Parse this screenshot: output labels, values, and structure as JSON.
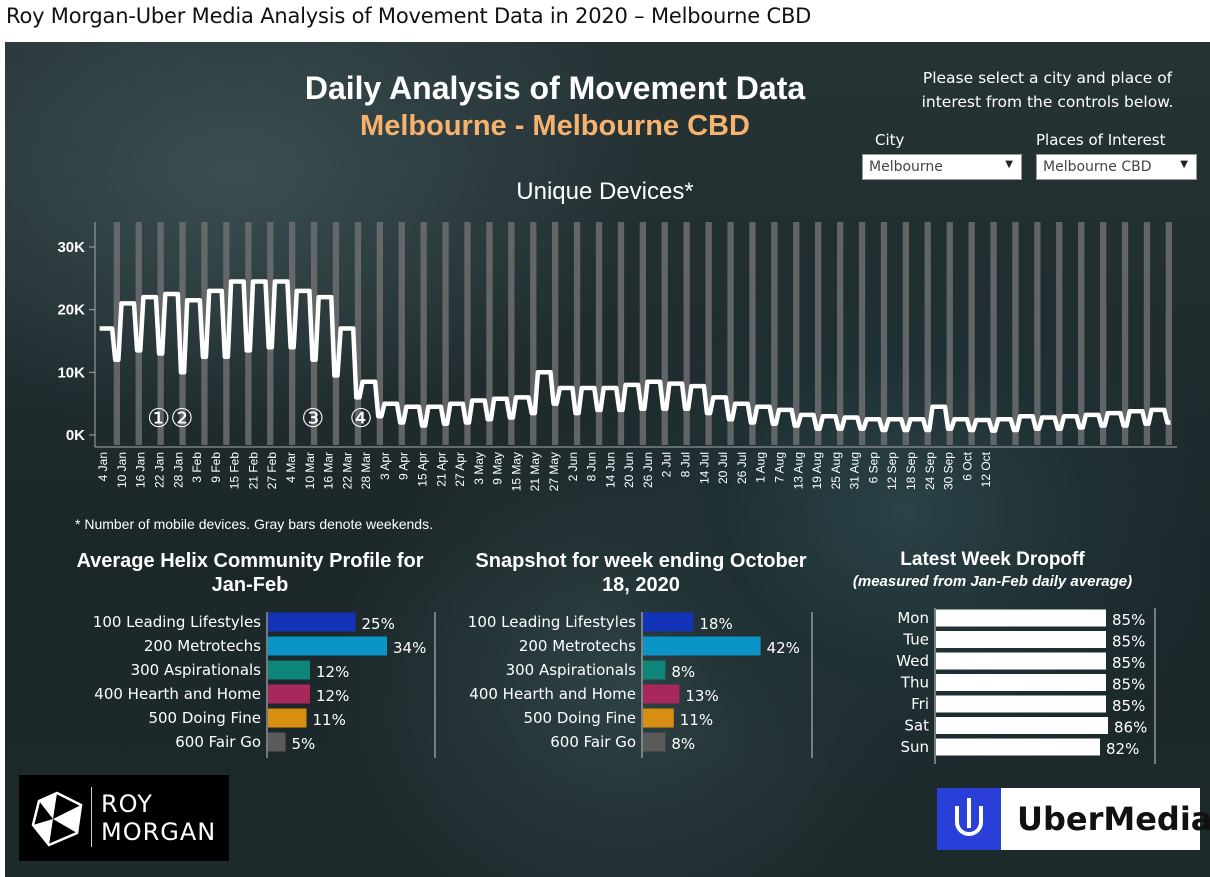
{
  "page_title": "Roy Morgan-Uber Media Analysis of Movement Data in 2020 – Melbourne CBD",
  "header": {
    "title": "Daily Analysis of Movement Data",
    "subtitle": "Melbourne - Melbourne CBD",
    "instructions": "Please select a city and place of interest from the controls below."
  },
  "controls": {
    "city_label": "City",
    "city_value": "Melbourne",
    "poi_label": "Places of Interest",
    "poi_value": "Melbourne CBD"
  },
  "colors": {
    "accent": "#f7b26d",
    "line": "#ffffff",
    "weekend_bar": "#6e6e6e",
    "leading_lifestyles": "#1334b8",
    "metrotechs": "#0b95c6",
    "aspirationals": "#0f857a",
    "hearth_home": "#a8275d",
    "doing_fine": "#d88e10",
    "fair_go": "#5a5a5a"
  },
  "chart_data": [
    {
      "type": "line",
      "title": "Unique Devices*",
      "footnote": "* Number of mobile devices. Gray bars denote weekends.",
      "y_ticks": [
        "30K",
        "20K",
        "10K",
        "0K"
      ],
      "ylim": [
        0,
        33000
      ],
      "x_tick_labels": [
        "4 Jan",
        "10 Jan",
        "16 Jan",
        "22 Jan",
        "28 Jan",
        "3 Feb",
        "9 Feb",
        "15 Feb",
        "21 Feb",
        "27 Feb",
        "4 Mar",
        "10 Mar",
        "16 Mar",
        "22 Mar",
        "28 Mar",
        "3 Apr",
        "9 Apr",
        "15 Apr",
        "21 Apr",
        "27 Apr",
        "3 May",
        "9 May",
        "15 May",
        "21 May",
        "27 May",
        "2 Jun",
        "8 Jun",
        "14 Jun",
        "20 Jun",
        "26 Jun",
        "2 Jul",
        "8 Jul",
        "14 Jul",
        "20 Jul",
        "26 Jul",
        "1 Aug",
        "7 Aug",
        "13 Aug",
        "19 Aug",
        "25 Aug",
        "31 Aug",
        "6 Sep",
        "12 Sep",
        "18 Sep",
        "24 Sep",
        "30 Sep",
        "6 Oct",
        "12 Oct"
      ],
      "annotations": [
        "①②",
        "③",
        "④"
      ],
      "series": [
        {
          "weekly_points_weekday_weekend": [
            [
              17000,
              12000
            ],
            [
              21000,
              13500
            ],
            [
              22000,
              13000
            ],
            [
              22500,
              10000
            ],
            [
              21500,
              12500
            ],
            [
              23000,
              12500
            ],
            [
              24500,
              13500
            ],
            [
              24500,
              14000
            ],
            [
              24500,
              14000
            ],
            [
              23000,
              12000
            ],
            [
              22000,
              9500
            ],
            [
              17000,
              6000
            ],
            [
              8500,
              3000
            ],
            [
              5000,
              2000
            ],
            [
              4500,
              1500
            ],
            [
              4500,
              1800
            ],
            [
              5000,
              2000
            ],
            [
              5500,
              2500
            ],
            [
              5800,
              2800
            ],
            [
              6000,
              3500
            ],
            [
              10000,
              5000
            ],
            [
              7500,
              3500
            ],
            [
              7500,
              4000
            ],
            [
              7500,
              4000
            ],
            [
              8000,
              4200
            ],
            [
              8500,
              4200
            ],
            [
              8200,
              4200
            ],
            [
              7800,
              3500
            ],
            [
              6000,
              2500
            ],
            [
              5000,
              2000
            ],
            [
              4500,
              1800
            ],
            [
              4000,
              1500
            ],
            [
              3200,
              1000
            ],
            [
              3000,
              1000
            ],
            [
              2800,
              1000
            ],
            [
              2500,
              800
            ],
            [
              2500,
              800
            ],
            [
              2500,
              800
            ],
            [
              4500,
              1000
            ],
            [
              2500,
              800
            ],
            [
              2400,
              700
            ],
            [
              2500,
              800
            ],
            [
              3000,
              1000
            ],
            [
              2800,
              1000
            ],
            [
              3000,
              1200
            ],
            [
              3200,
              1500
            ],
            [
              3500,
              1500
            ],
            [
              3800,
              1800
            ],
            [
              4000,
              2000
            ]
          ]
        }
      ]
    },
    {
      "type": "bar",
      "title": "Average Helix Community Profile for Jan-Feb",
      "categories": [
        "100 Leading Lifestyles",
        "200 Metrotechs",
        "300 Aspirationals",
        "400 Hearth and Home",
        "500 Doing Fine",
        "600 Fair Go"
      ],
      "values": [
        25,
        34,
        12,
        12,
        11,
        5
      ],
      "value_labels": [
        "25%",
        "34%",
        "12%",
        "12%",
        "11%",
        "5%"
      ]
    },
    {
      "type": "bar",
      "title": "Snapshot for week ending October 18, 2020",
      "categories": [
        "100 Leading Lifestyles",
        "200 Metrotechs",
        "300 Aspirationals",
        "400 Hearth and Home",
        "500 Doing Fine",
        "600 Fair Go"
      ],
      "values": [
        18,
        42,
        8,
        13,
        11,
        8
      ],
      "value_labels": [
        "18%",
        "42%",
        "8%",
        "13%",
        "11%",
        "8%"
      ]
    },
    {
      "type": "bar",
      "title": "Latest Week Dropoff",
      "subtitle": "(measured from Jan-Feb daily average)",
      "categories": [
        "Mon",
        "Tue",
        "Wed",
        "Thu",
        "Fri",
        "Sat",
        "Sun"
      ],
      "values": [
        85,
        85,
        85,
        85,
        85,
        86,
        82
      ],
      "value_labels": [
        "85%",
        "85%",
        "85%",
        "85%",
        "85%",
        "86%",
        "82%"
      ]
    }
  ],
  "logos": {
    "roy_morgan_line1": "ROY",
    "roy_morgan_line2": "MORGAN",
    "ubermedia": "UberMedia"
  }
}
